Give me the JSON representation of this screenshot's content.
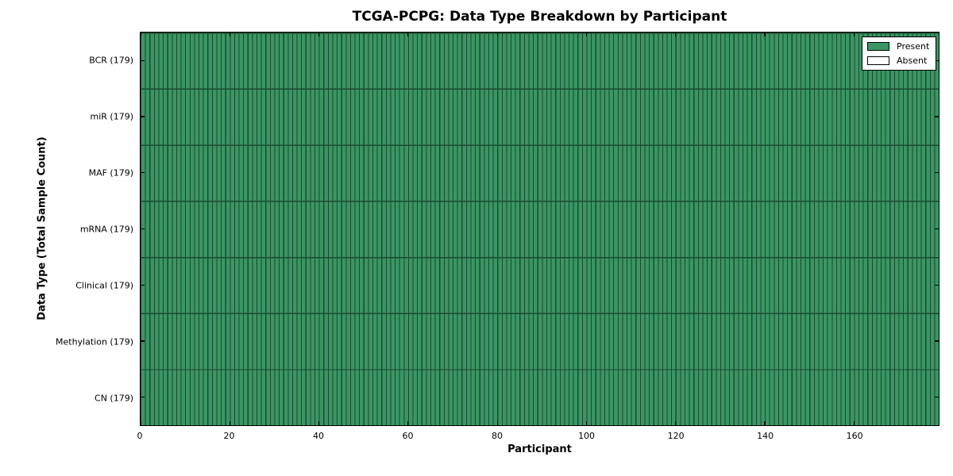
{
  "chart_data": {
    "type": "heatmap",
    "title": "TCGA-PCPG: Data Type Breakdown by Participant",
    "xlabel": "Participant",
    "ylabel": "Data Type (Total Sample Count)",
    "n_participants": 179,
    "x_range": [
      0,
      179
    ],
    "x_ticks": [
      0,
      20,
      40,
      60,
      80,
      100,
      120,
      140,
      160
    ],
    "rows": [
      {
        "label": "BCR (179)",
        "data_type": "BCR",
        "total_samples": 179,
        "present_count": 179,
        "absent_count": 0
      },
      {
        "label": "miR (179)",
        "data_type": "miR",
        "total_samples": 179,
        "present_count": 179,
        "absent_count": 0
      },
      {
        "label": "MAF (179)",
        "data_type": "MAF",
        "total_samples": 179,
        "present_count": 179,
        "absent_count": 0
      },
      {
        "label": "mRNA (179)",
        "data_type": "mRNA",
        "total_samples": 179,
        "present_count": 179,
        "absent_count": 0
      },
      {
        "label": "Clinical (179)",
        "data_type": "Clinical",
        "total_samples": 179,
        "present_count": 179,
        "absent_count": 0
      },
      {
        "label": "Methylation (179)",
        "data_type": "Methylation",
        "total_samples": 179,
        "present_count": 179,
        "absent_count": 0
      },
      {
        "label": "CN (179)",
        "data_type": "CN",
        "total_samples": 179,
        "present_count": 179,
        "absent_count": 0
      }
    ],
    "legend": [
      {
        "label": "Present",
        "swatch": "present"
      },
      {
        "label": "Absent",
        "swatch": "absent"
      }
    ],
    "colors": {
      "present": "#3a9663",
      "absent": "#ffffff",
      "cell_edge": "#1b4a30",
      "grid_line": "#1b4a30",
      "spine": "#000000"
    },
    "layout": {
      "legend_position": "upper right",
      "grid": "cell-borders"
    }
  }
}
